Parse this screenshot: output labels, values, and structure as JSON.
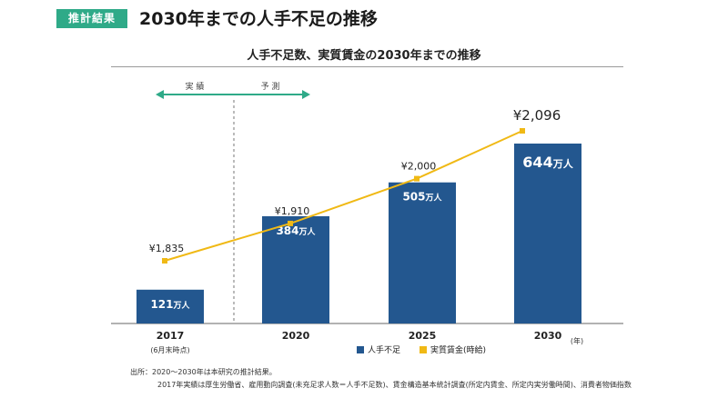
{
  "tag_label": "推計結果",
  "page_title": "2030年までの人手不足の推移",
  "colors": {
    "bar": "#23578f",
    "line": "#f0b915",
    "accent": "#2faa88"
  },
  "chart_data": {
    "type": "bar",
    "title": "人手不足数、実質賃金の2030年までの推移",
    "categories": [
      "2017",
      "2020",
      "2025",
      "2030"
    ],
    "category_sublabels": [
      "(6月末時点)",
      "",
      "",
      ""
    ],
    "x_unit": "(年)",
    "series": [
      {
        "name": "人手不足",
        "type": "bar",
        "values": [
          121,
          384,
          505,
          644
        ],
        "labels": [
          "121万人",
          "384万人",
          "505万人",
          "644万人"
        ]
      },
      {
        "name": "実質賃金(時給)",
        "type": "line",
        "values": [
          1835,
          1910,
          2000,
          2096
        ],
        "labels": [
          "¥1,835",
          "¥1,910",
          "¥2,000",
          "¥2,096"
        ]
      }
    ],
    "period_labels": {
      "actual": "実 績",
      "forecast": "予 測"
    },
    "legend_position": "bottom"
  },
  "source_lines": [
    "出所：2020～2030年は本研究の推計結果。",
    "2017年実績は厚生労働省、雇用動向調査(未充足求人数＝人手不足数)、賃金構造基本統計調査(所定内賃金、所定内実労働時間)、消費者物価指数"
  ]
}
